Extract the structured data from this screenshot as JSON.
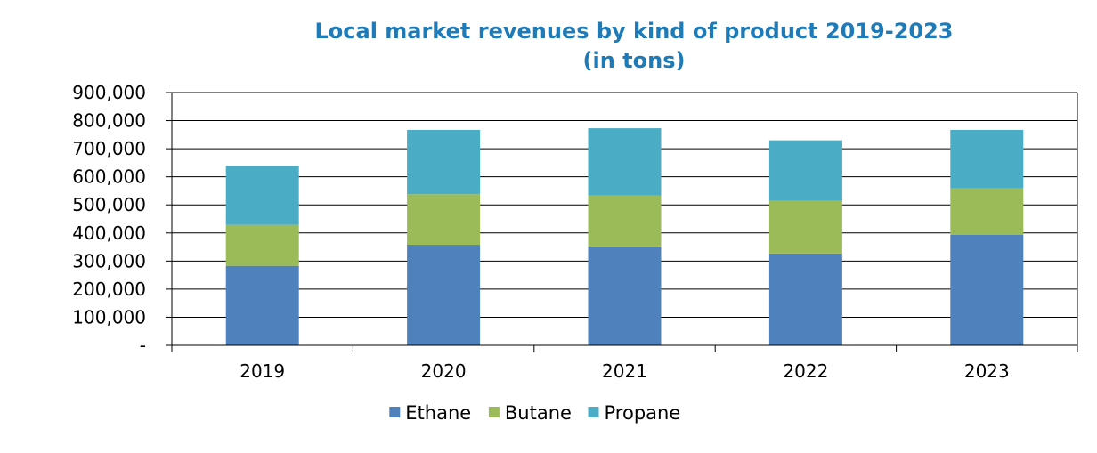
{
  "chart_data": {
    "type": "bar",
    "stacked": true,
    "title": "Local market revenues by kind of product 2019-2023",
    "subtitle": "(in tons)",
    "categories": [
      "2019",
      "2020",
      "2021",
      "2022",
      "2023"
    ],
    "series": [
      {
        "name": "Ethane",
        "color": "#4f81bd",
        "values": [
          283000,
          358000,
          352000,
          327000,
          393000
        ]
      },
      {
        "name": "Butane",
        "color": "#9bbb59",
        "values": [
          146000,
          180000,
          181000,
          187000,
          166000
        ]
      },
      {
        "name": "Propane",
        "color": "#4bacc6",
        "values": [
          210000,
          229000,
          240000,
          216000,
          208000
        ]
      }
    ],
    "ylim": [
      0,
      900000
    ],
    "yticks": [
      0,
      100000,
      200000,
      300000,
      400000,
      500000,
      600000,
      700000,
      800000,
      900000
    ],
    "ytick_labels": [
      "-",
      "100,000",
      "200,000",
      "300,000",
      "400,000",
      "500,000",
      "600,000",
      "700,000",
      "800,000",
      "900,000"
    ],
    "grid": true,
    "legend_position": "bottom"
  }
}
